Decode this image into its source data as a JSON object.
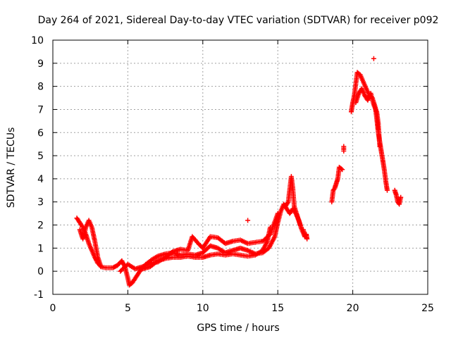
{
  "chart_data": {
    "type": "scatter",
    "title": "Day 264 of 2021, Sidereal Day-to-day VTEC variation (SDTVAR) for receiver p092",
    "xlabel": "GPS time / hours",
    "ylabel": "SDTVAR / TECUs",
    "xlim": [
      0,
      25
    ],
    "ylim": [
      -1,
      10
    ],
    "x_ticks": [
      0,
      5,
      10,
      15,
      20,
      25
    ],
    "y_ticks": [
      -1,
      0,
      1,
      2,
      3,
      4,
      5,
      6,
      7,
      8,
      9,
      10
    ],
    "grid": true,
    "marker": "plus",
    "point_color": "#ff0000",
    "trace_segments": [
      [
        [
          1.6,
          2.3
        ],
        [
          1.8,
          2.1
        ],
        [
          2.0,
          1.9
        ],
        [
          2.2,
          1.6
        ],
        [
          2.4,
          1.2
        ],
        [
          2.6,
          0.9
        ],
        [
          2.8,
          0.6
        ],
        [
          3.0,
          0.35
        ],
        [
          3.2,
          0.2
        ],
        [
          3.5,
          0.15
        ],
        [
          4.0,
          0.15
        ],
        [
          4.3,
          0.25
        ],
        [
          4.6,
          0.45
        ],
        [
          4.8,
          0.2
        ],
        [
          5.0,
          -0.3
        ],
        [
          5.1,
          -0.6
        ],
        [
          5.3,
          -0.5
        ],
        [
          5.6,
          -0.2
        ],
        [
          5.9,
          0.1
        ],
        [
          6.2,
          0.3
        ],
        [
          6.6,
          0.5
        ],
        [
          7.0,
          0.65
        ],
        [
          7.5,
          0.75
        ],
        [
          8.0,
          0.8
        ],
        [
          8.5,
          0.7
        ],
        [
          9.0,
          0.75
        ],
        [
          9.5,
          0.7
        ],
        [
          10.0,
          0.8
        ],
        [
          10.5,
          1.1
        ],
        [
          11.0,
          1.0
        ],
        [
          11.5,
          0.8
        ],
        [
          12.0,
          0.9
        ],
        [
          12.5,
          1.0
        ],
        [
          13.0,
          0.9
        ],
        [
          13.5,
          0.75
        ],
        [
          14.0,
          0.8
        ],
        [
          14.4,
          1.0
        ],
        [
          14.8,
          1.5
        ],
        [
          15.0,
          2.1
        ],
        [
          15.2,
          2.6
        ],
        [
          15.4,
          2.9
        ],
        [
          15.6,
          2.7
        ],
        [
          15.8,
          2.5
        ],
        [
          16.0,
          2.7
        ],
        [
          16.2,
          2.5
        ],
        [
          16.4,
          2.2
        ],
        [
          16.6,
          1.8
        ],
        [
          16.8,
          1.5
        ]
      ],
      [
        [
          1.8,
          1.8
        ],
        [
          2.0,
          1.4
        ],
        [
          2.2,
          1.9
        ],
        [
          2.4,
          2.2
        ],
        [
          2.6,
          1.9
        ],
        [
          2.8,
          1.3
        ],
        [
          3.0,
          0.6
        ],
        [
          3.2,
          0.2
        ]
      ],
      [
        [
          4.5,
          0.0
        ],
        [
          5.0,
          0.3
        ],
        [
          5.5,
          0.1
        ],
        [
          6.0,
          0.2
        ],
        [
          6.5,
          0.35
        ],
        [
          7.0,
          0.4
        ],
        [
          7.5,
          0.6
        ],
        [
          8.0,
          0.85
        ],
        [
          8.5,
          0.95
        ],
        [
          9.0,
          0.9
        ],
        [
          9.3,
          1.5
        ],
        [
          9.7,
          1.2
        ],
        [
          10.0,
          1.0
        ],
        [
          10.5,
          1.5
        ],
        [
          11.0,
          1.45
        ],
        [
          11.5,
          1.2
        ],
        [
          12.0,
          1.3
        ],
        [
          12.5,
          1.35
        ],
        [
          13.0,
          1.2
        ],
        [
          13.5,
          1.25
        ],
        [
          14.0,
          1.3
        ],
        [
          14.5,
          1.6
        ],
        [
          15.0,
          2.5
        ]
      ],
      [
        [
          6.0,
          0.1
        ],
        [
          6.5,
          0.2
        ],
        [
          7.0,
          0.45
        ],
        [
          7.5,
          0.55
        ],
        [
          8.0,
          0.6
        ],
        [
          8.5,
          0.6
        ],
        [
          9.0,
          0.65
        ],
        [
          9.5,
          0.6
        ],
        [
          10.0,
          0.6
        ],
        [
          10.5,
          0.7
        ],
        [
          11.0,
          0.75
        ],
        [
          11.5,
          0.7
        ],
        [
          12.0,
          0.75
        ],
        [
          12.5,
          0.7
        ],
        [
          13.0,
          0.65
        ],
        [
          13.5,
          0.7
        ],
        [
          14.0,
          0.9
        ],
        [
          14.3,
          1.3
        ],
        [
          14.5,
          1.9
        ]
      ],
      [
        [
          15.5,
          2.8
        ],
        [
          15.7,
          3.0
        ],
        [
          15.9,
          4.1
        ],
        [
          16.0,
          3.6
        ],
        [
          16.1,
          2.8
        ],
        [
          16.3,
          2.4
        ],
        [
          16.5,
          2.0
        ]
      ],
      [
        [
          16.7,
          1.8
        ],
        [
          16.8,
          1.5
        ],
        [
          16.9,
          1.6
        ],
        [
          16.95,
          1.4
        ]
      ],
      [
        [
          18.6,
          3.0
        ],
        [
          18.7,
          3.5
        ],
        [
          18.8,
          3.6
        ],
        [
          18.9,
          3.8
        ],
        [
          19.0,
          4.0
        ],
        [
          19.1,
          4.5
        ],
        [
          19.3,
          4.4
        ]
      ],
      [
        [
          19.4,
          5.2
        ],
        [
          19.4,
          5.4
        ]
      ],
      [
        [
          19.9,
          6.9
        ],
        [
          20.0,
          7.3
        ],
        [
          20.1,
          7.6
        ],
        [
          20.2,
          8.1
        ],
        [
          20.3,
          8.6
        ],
        [
          20.5,
          8.5
        ],
        [
          20.7,
          8.2
        ],
        [
          20.9,
          7.9
        ],
        [
          21.1,
          7.6
        ],
        [
          21.3,
          7.5
        ],
        [
          21.5,
          7.1
        ],
        [
          21.6,
          6.6
        ],
        [
          21.7,
          6.0
        ],
        [
          21.8,
          5.6
        ],
        [
          21.9,
          5.2
        ],
        [
          22.0,
          4.8
        ],
        [
          22.1,
          4.4
        ],
        [
          22.2,
          3.9
        ],
        [
          22.3,
          3.5
        ]
      ],
      [
        [
          20.2,
          7.3
        ],
        [
          20.4,
          7.7
        ],
        [
          20.6,
          7.9
        ],
        [
          20.8,
          7.6
        ],
        [
          21.0,
          7.4
        ],
        [
          21.2,
          7.7
        ],
        [
          21.4,
          7.2
        ],
        [
          21.6,
          6.9
        ],
        [
          21.7,
          6.4
        ],
        [
          21.8,
          5.4
        ]
      ],
      [
        [
          21.4,
          9.2
        ]
      ],
      [
        [
          22.8,
          3.5
        ],
        [
          22.9,
          3.3
        ],
        [
          23.0,
          3.0
        ],
        [
          23.1,
          2.9
        ],
        [
          23.2,
          3.2
        ]
      ],
      [
        [
          13.0,
          2.2
        ]
      ]
    ]
  }
}
